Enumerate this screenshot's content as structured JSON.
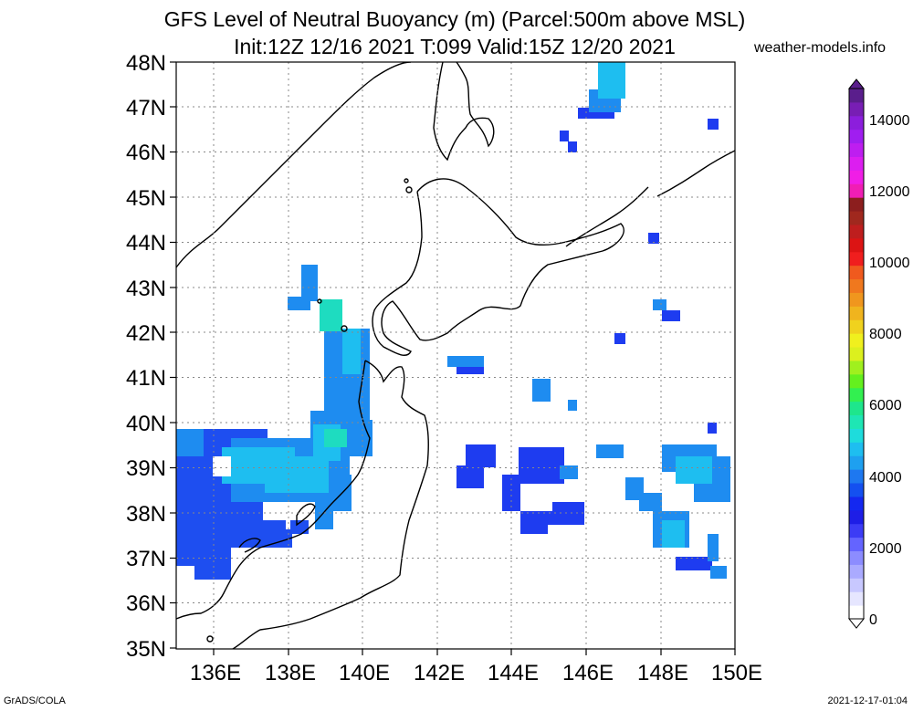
{
  "title": {
    "line1": "GFS Level of Neutral Buoyancy (m) (Parcel:500m above MSL)",
    "line2": "Init:12Z 12/16 2021 T:099 Valid:15Z 12/20 2021"
  },
  "source": "weather-models.info",
  "footer": {
    "left": "GrADS/COLA",
    "right": "2021-12-17-01:04"
  },
  "map": {
    "lat_labels": [
      "35N",
      "36N",
      "37N",
      "38N",
      "39N",
      "40N",
      "41N",
      "42N",
      "43N",
      "44N",
      "45N",
      "46N",
      "47N",
      "48N"
    ],
    "lon_labels": [
      "136E",
      "138E",
      "140E",
      "142E",
      "144E",
      "146E",
      "148E",
      "150E"
    ],
    "lat_range": [
      35,
      48
    ],
    "lon_range": [
      135,
      150
    ],
    "grid": "dotted every 1 degree latitude and 2 degrees longitude"
  },
  "colorbar": {
    "labels": [
      "0",
      "2000",
      "4000",
      "6000",
      "8000",
      "10000",
      "12000",
      "14000"
    ],
    "range": [
      0,
      15000
    ],
    "colors": [
      "#ffffff",
      "#e6e6ff",
      "#c8c8ff",
      "#aaaaff",
      "#8c8cff",
      "#6464ff",
      "#3c3cf5",
      "#1e1ee6",
      "#1428f0",
      "#1450f0",
      "#1e78f0",
      "#1ea0f0",
      "#1ebef0",
      "#1edcdc",
      "#1ee6b4",
      "#1ee68c",
      "#32f050",
      "#64f01e",
      "#a0f01e",
      "#dcf01e",
      "#f0f01e",
      "#f0d21e",
      "#f0b41e",
      "#f0961e",
      "#f0781e",
      "#f05a1e",
      "#f01e1e",
      "#dc1414",
      "#be1e1e",
      "#a0281e",
      "#8c1e1e",
      "#f01eb4",
      "#f01ee6",
      "#dc1ef0",
      "#be1ef0",
      "#a01ef0",
      "#8c1edc",
      "#781eb4",
      "#5a1e8c"
    ]
  },
  "field_patches": [
    {
      "name": "japan-sea-main",
      "color": "#1e5af0"
    },
    {
      "name": "japan-sea-upper",
      "color": "#1ea0f0"
    },
    {
      "name": "japan-sea-cyan",
      "color": "#1ec8e6"
    }
  ]
}
